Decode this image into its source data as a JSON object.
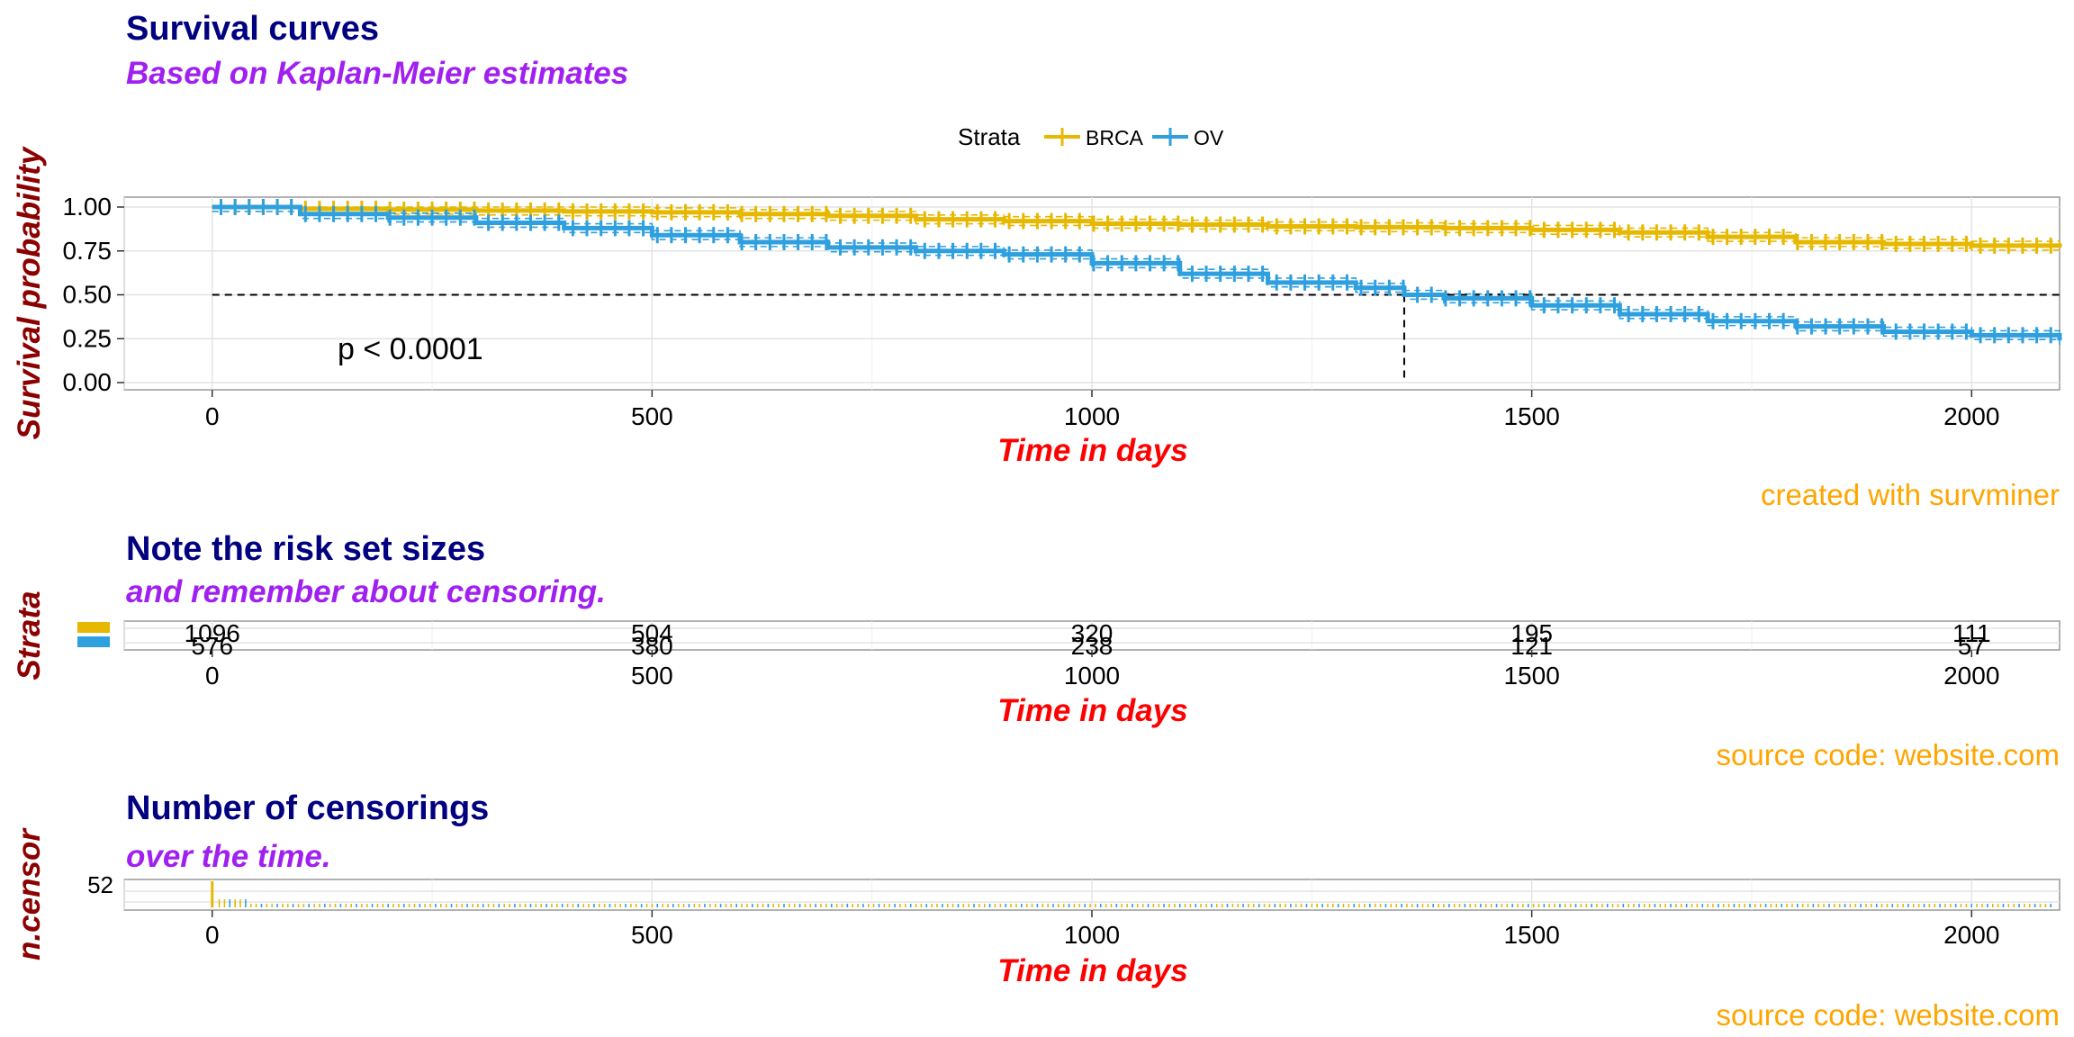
{
  "colors": {
    "brca": "#E7B800",
    "ov": "#2E9FDF",
    "title": "#000080",
    "subtitle": "#A020F0",
    "xlabel": "#FF0000",
    "ylabel": "#8B0000",
    "caption": "#FFA500"
  },
  "chart_data": [
    {
      "type": "line",
      "title": "Survival curves",
      "subtitle": "Based on Kaplan-Meier estimates",
      "xlabel": "Time in days",
      "ylabel": "Survival probability",
      "caption": "created with survminer",
      "xlim": [
        -100,
        2100
      ],
      "ylim": [
        0,
        1
      ],
      "xticks": [
        "0",
        "500",
        "1000",
        "1500",
        "2000"
      ],
      "yticks": [
        "0.00",
        "0.25",
        "0.50",
        "0.75",
        "1.00"
      ],
      "legend": {
        "title": "Strata",
        "position": "top",
        "labels": [
          "BRCA",
          "OV"
        ]
      },
      "pvalue": "p < 0.0001",
      "median_line": {
        "y": 0.5,
        "x": 1355
      },
      "series": [
        {
          "name": "BRCA",
          "color": "#E7B800",
          "x": [
            0,
            100,
            200,
            300,
            400,
            500,
            600,
            700,
            800,
            900,
            1000,
            1100,
            1200,
            1300,
            1400,
            1500,
            1600,
            1700,
            1800,
            1900,
            2000,
            2100
          ],
          "y": [
            1.0,
            0.99,
            0.985,
            0.98,
            0.975,
            0.97,
            0.96,
            0.95,
            0.93,
            0.92,
            0.905,
            0.9,
            0.89,
            0.885,
            0.88,
            0.87,
            0.855,
            0.83,
            0.8,
            0.79,
            0.78,
            0.77
          ]
        },
        {
          "name": "OV",
          "color": "#2E9FDF",
          "x": [
            0,
            100,
            200,
            300,
            400,
            500,
            600,
            700,
            800,
            900,
            1000,
            1100,
            1200,
            1300,
            1355,
            1400,
            1500,
            1600,
            1700,
            1800,
            1900,
            2000,
            2100
          ],
          "y": [
            1.0,
            0.96,
            0.94,
            0.91,
            0.88,
            0.84,
            0.8,
            0.77,
            0.75,
            0.73,
            0.68,
            0.62,
            0.57,
            0.54,
            0.5,
            0.48,
            0.44,
            0.39,
            0.35,
            0.32,
            0.29,
            0.27,
            0.24
          ]
        }
      ]
    },
    {
      "type": "table",
      "title": "Note the risk set sizes",
      "subtitle": "and remember about censoring.",
      "xlabel": "Time in days",
      "ylabel": "Strata",
      "caption": "source code: website.com",
      "xlim": [
        -100,
        2100
      ],
      "xticks": [
        "0",
        "500",
        "1000",
        "1500",
        "2000"
      ],
      "x": [
        0,
        500,
        1000,
        1500,
        2000
      ],
      "rows": [
        {
          "name": "BRCA",
          "color": "#E7B800",
          "values": [
            "1096",
            "504",
            "320",
            "195",
            "111"
          ]
        },
        {
          "name": "OV",
          "color": "#2E9FDF",
          "values": [
            "576",
            "380",
            "238",
            "121",
            "57"
          ]
        }
      ]
    },
    {
      "type": "bar",
      "title": "Number of censorings",
      "subtitle": "over the time.",
      "xlabel": "Time in days",
      "ylabel": "n.censor",
      "caption": "source code: website.com",
      "xlim": [
        -100,
        2100
      ],
      "ylim": [
        0,
        52
      ],
      "xticks": [
        "0",
        "500",
        "1000",
        "1500",
        "2000"
      ],
      "yticks": [
        "52"
      ],
      "peak": {
        "x": 0,
        "value": 52
      }
    }
  ]
}
